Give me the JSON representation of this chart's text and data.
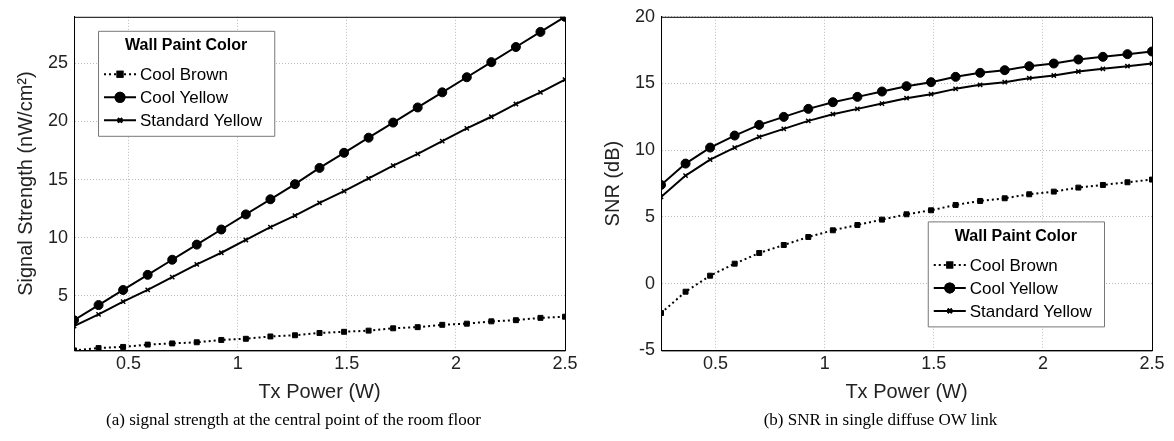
{
  "chart_data": [
    {
      "type": "line",
      "xlabel": "Tx Power (W)",
      "ylabel": "Signal Strength (nW/cm²)",
      "legend_title": "Wall Paint Color",
      "legend": "top left",
      "grid": true,
      "x": [
        0.25,
        0.3625,
        0.475,
        0.5875,
        0.7,
        0.8125,
        0.925,
        1.0375,
        1.15,
        1.2625,
        1.375,
        1.4875,
        1.6,
        1.7125,
        1.825,
        1.9375,
        2.05,
        2.1625,
        2.275,
        2.3875,
        2.5
      ],
      "xlim": [
        0.25,
        2.5
      ],
      "xticks": [
        0.5,
        1,
        1.5,
        2,
        2.5
      ],
      "ylim": [
        0.3,
        29
      ],
      "yticks": [
        5,
        10,
        15,
        20,
        25
      ],
      "annotations": [
        "(a) signal strength at the central point of the room floor"
      ],
      "series": [
        {
          "name": "Cool Brown",
          "color": "#000000",
          "marker": "square",
          "line_style": "dotted",
          "values": [
            0.3,
            0.5,
            0.6,
            0.8,
            0.9,
            1.0,
            1.2,
            1.3,
            1.5,
            1.6,
            1.8,
            1.9,
            2.0,
            2.2,
            2.3,
            2.5,
            2.6,
            2.8,
            2.9,
            3.1,
            3.2
          ]
        },
        {
          "name": "Cool Yellow",
          "color": "#000000",
          "marker": "circle",
          "line_style": "solid",
          "values": [
            2.9,
            4.2,
            5.5,
            6.8,
            8.1,
            9.4,
            10.7,
            12.0,
            13.3,
            14.6,
            16.0,
            17.3,
            18.6,
            19.9,
            21.2,
            22.5,
            23.8,
            25.1,
            26.4,
            27.7,
            29.0
          ]
        },
        {
          "name": "Standard Yellow",
          "color": "#000000",
          "marker": "cross",
          "line_style": "solid",
          "values": [
            2.4,
            3.4,
            4.5,
            5.5,
            6.6,
            7.7,
            8.7,
            9.8,
            10.9,
            11.9,
            13.0,
            14.0,
            15.1,
            16.2,
            17.2,
            18.3,
            19.4,
            20.4,
            21.5,
            22.5,
            23.6
          ]
        }
      ]
    },
    {
      "type": "line",
      "xlabel": "Tx Power (W)",
      "ylabel": "SNR (dB)",
      "legend_title": "Wall Paint Color",
      "legend": "bottom right",
      "grid": true,
      "x": [
        0.25,
        0.3625,
        0.475,
        0.5875,
        0.7,
        0.8125,
        0.925,
        1.0375,
        1.15,
        1.2625,
        1.375,
        1.4875,
        1.6,
        1.7125,
        1.825,
        1.9375,
        2.05,
        2.1625,
        2.275,
        2.3875,
        2.5
      ],
      "xlim": [
        0.25,
        2.5
      ],
      "xticks": [
        0.5,
        1,
        1.5,
        2,
        2.5
      ],
      "ylim": [
        -5,
        20
      ],
      "yticks": [
        -5,
        0,
        5,
        10,
        15,
        20
      ],
      "annotations": [
        "(b) SNR in single diffuse OW link"
      ],
      "series": [
        {
          "name": "Cool Brown",
          "color": "#000000",
          "marker": "square",
          "line_style": "dotted",
          "values": [
            -2.2,
            -0.6,
            0.6,
            1.5,
            2.3,
            2.9,
            3.5,
            4.0,
            4.4,
            4.8,
            5.2,
            5.5,
            5.9,
            6.2,
            6.4,
            6.7,
            6.9,
            7.2,
            7.4,
            7.6,
            7.8
          ]
        },
        {
          "name": "Cool Yellow",
          "color": "#000000",
          "marker": "circle",
          "line_style": "solid",
          "values": [
            7.4,
            9.0,
            10.2,
            11.1,
            11.9,
            12.5,
            13.1,
            13.6,
            14.0,
            14.4,
            14.8,
            15.1,
            15.5,
            15.8,
            16.0,
            16.3,
            16.5,
            16.8,
            17.0,
            17.2,
            17.4
          ]
        },
        {
          "name": "Standard Yellow",
          "color": "#000000",
          "marker": "cross",
          "line_style": "solid",
          "values": [
            6.5,
            8.1,
            9.3,
            10.2,
            11.0,
            11.6,
            12.2,
            12.7,
            13.1,
            13.5,
            13.9,
            14.2,
            14.6,
            14.9,
            15.1,
            15.4,
            15.6,
            15.9,
            16.1,
            16.3,
            16.5
          ]
        }
      ]
    }
  ]
}
